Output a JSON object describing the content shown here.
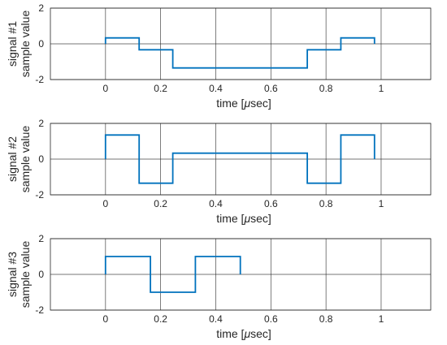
{
  "chart_data": [
    {
      "type": "line",
      "step": "post",
      "ylabel_line1": "signal #1",
      "ylabel_line2": "sample value",
      "xlabel_prefix": "time [",
      "xlabel_mu": "μ",
      "xlabel_suffix": "sec]",
      "xlim": [
        -0.2,
        1.18
      ],
      "ylim": [
        -2,
        2
      ],
      "x_ticks": [
        0,
        0.2,
        0.4,
        0.6,
        0.8,
        1
      ],
      "x_tick_labels": [
        "0",
        "0.2",
        "0.4",
        "0.6",
        "0.8",
        "1"
      ],
      "y_ticks": [
        -2,
        0,
        2
      ],
      "y_tick_labels": [
        "-2",
        "0",
        "2"
      ],
      "grid": true,
      "color": "#0072BD",
      "x": [
        0,
        0.122,
        0.244,
        0.366,
        0.488,
        0.61,
        0.732,
        0.854,
        0.976
      ],
      "y": [
        0.33,
        -0.33,
        -1.35,
        -1.35,
        -1.35,
        -1.35,
        -0.33,
        0.33,
        0.33
      ]
    },
    {
      "type": "line",
      "step": "post",
      "ylabel_line1": "signal #2",
      "ylabel_line2": "sample value",
      "xlabel_prefix": "time [",
      "xlabel_mu": "μ",
      "xlabel_suffix": "sec]",
      "xlim": [
        -0.2,
        1.18
      ],
      "ylim": [
        -2,
        2
      ],
      "x_ticks": [
        0,
        0.2,
        0.4,
        0.6,
        0.8,
        1
      ],
      "x_tick_labels": [
        "0",
        "0.2",
        "0.4",
        "0.6",
        "0.8",
        "1"
      ],
      "y_ticks": [
        -2,
        0,
        2
      ],
      "y_tick_labels": [
        "-2",
        "0",
        "2"
      ],
      "grid": true,
      "color": "#0072BD",
      "x": [
        0,
        0.122,
        0.244,
        0.366,
        0.488,
        0.61,
        0.732,
        0.854,
        0.976
      ],
      "y": [
        1.35,
        -1.35,
        0.33,
        0.33,
        0.33,
        0.33,
        -1.35,
        1.35,
        1.35
      ]
    },
    {
      "type": "line",
      "step": "post",
      "ylabel_line1": "signal #3",
      "ylabel_line2": "sample value",
      "xlabel_prefix": "time [",
      "xlabel_mu": "μ",
      "xlabel_suffix": "sec]",
      "xlim": [
        -0.2,
        1.18
      ],
      "ylim": [
        -2,
        2
      ],
      "x_ticks": [
        0,
        0.2,
        0.4,
        0.6,
        0.8,
        1
      ],
      "x_tick_labels": [
        "0",
        "0.2",
        "0.4",
        "0.6",
        "0.8",
        "1"
      ],
      "y_ticks": [
        -2,
        0,
        2
      ],
      "y_tick_labels": [
        "-2",
        "0",
        "2"
      ],
      "grid": true,
      "color": "#0072BD",
      "x": [
        0,
        0.163,
        0.326,
        0.489
      ],
      "y": [
        1,
        -1,
        1,
        1
      ]
    }
  ]
}
